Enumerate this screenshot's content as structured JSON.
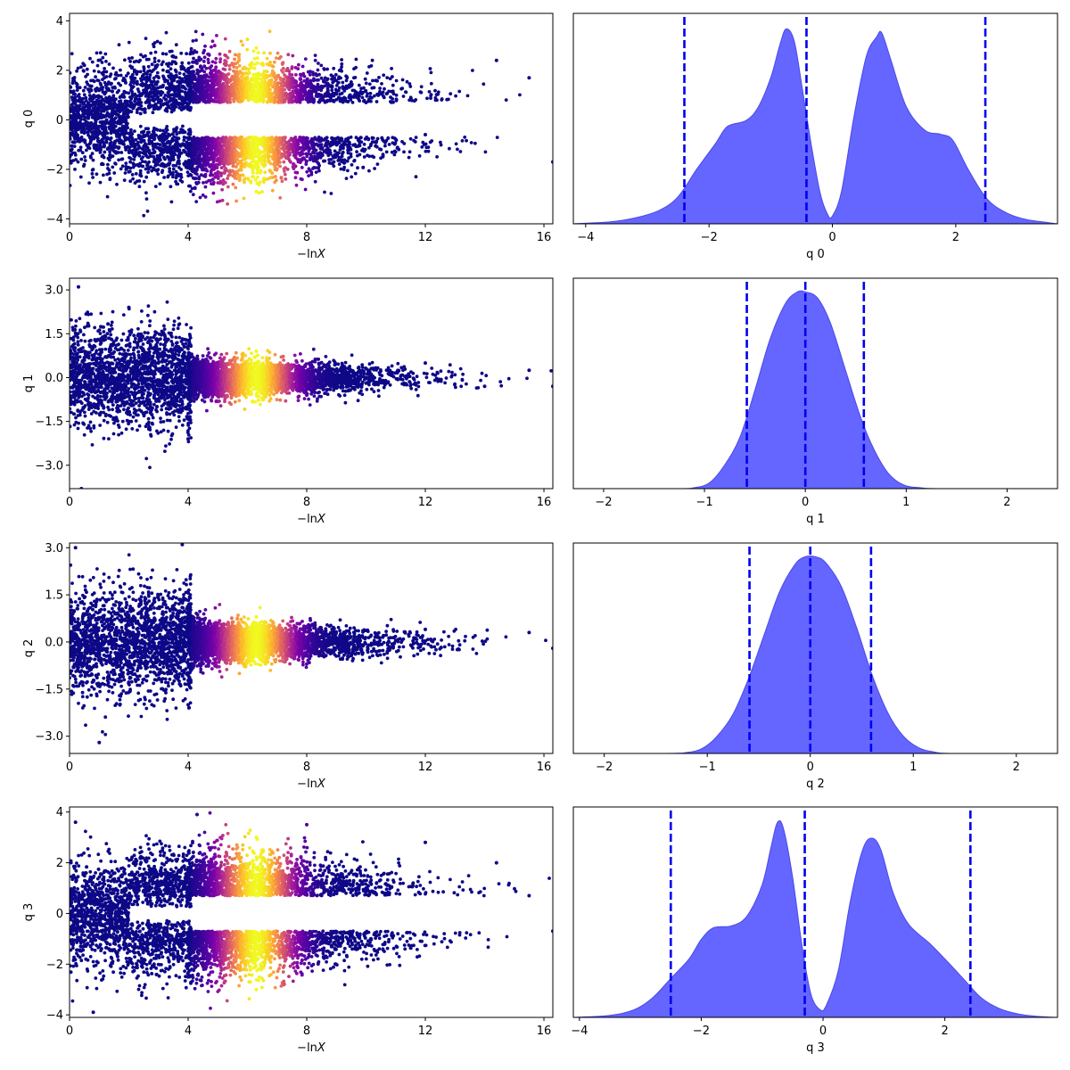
{
  "chart_data": [
    {
      "type": "scatter",
      "panel": "q0-scatter",
      "xlabel_prefix": "−ln",
      "xlabel_var": "X",
      "ylabel": "q 0",
      "xlim": [
        0,
        16.3
      ],
      "ylim": [
        -4.2,
        4.3
      ],
      "xticks": [
        0,
        4,
        8,
        12,
        16
      ],
      "yticks": [
        -4,
        -2,
        0,
        2,
        4
      ],
      "ytick_labels": [
        "−4",
        "−2",
        "0",
        "2",
        "4"
      ],
      "colormap": "plasma",
      "pattern": "bimodal-gap",
      "switch_x": 4.1,
      "peak_x": 6.3,
      "gap_halfwidth": 0.2,
      "approx_points": [
        [
          0.5,
          2.2
        ],
        [
          2.0,
          -2.1
        ],
        [
          4.0,
          0.9
        ],
        [
          6.3,
          2.9
        ],
        [
          6.3,
          -2.9
        ],
        [
          8.0,
          1.5
        ],
        [
          10.0,
          0.7
        ],
        [
          12.0,
          -0.6
        ],
        [
          14.4,
          2.4
        ],
        [
          15.5,
          1.7
        ],
        [
          16.3,
          -1.7
        ]
      ]
    },
    {
      "type": "area",
      "panel": "q0-density",
      "xlabel": "q 0",
      "xlim": [
        -4.2,
        3.65
      ],
      "ylim": [
        0,
        1.08
      ],
      "xticks": [
        -4,
        -2,
        0,
        2
      ],
      "xtick_labels": [
        "−4",
        "−2",
        "0",
        "2"
      ],
      "fill_color": "#6565ff",
      "vlines": [
        -2.4,
        -0.42,
        2.48
      ],
      "vline_color": "#0000ee",
      "density": {
        "x": [
          -4.2,
          -3.6,
          -3.2,
          -2.8,
          -2.5,
          -2.2,
          -1.9,
          -1.7,
          -1.4,
          -1.2,
          -1.0,
          -0.85,
          -0.75,
          -0.62,
          -0.5,
          -0.35,
          -0.2,
          -0.08,
          0.0,
          0.15,
          0.35,
          0.55,
          0.72,
          0.8,
          0.95,
          1.2,
          1.5,
          1.75,
          1.95,
          2.2,
          2.5,
          2.8,
          3.1,
          3.4,
          3.65
        ],
        "y": [
          0.0,
          0.01,
          0.03,
          0.07,
          0.14,
          0.28,
          0.41,
          0.5,
          0.53,
          0.6,
          0.75,
          0.92,
          1.0,
          0.94,
          0.72,
          0.42,
          0.16,
          0.05,
          0.04,
          0.17,
          0.55,
          0.86,
          0.96,
          0.98,
          0.84,
          0.6,
          0.48,
          0.46,
          0.43,
          0.28,
          0.13,
          0.06,
          0.025,
          0.01,
          0.0
        ]
      }
    },
    {
      "type": "scatter",
      "panel": "q1-scatter",
      "xlabel_prefix": "−ln",
      "xlabel_var": "X",
      "ylabel": "q 1",
      "xlim": [
        0,
        16.3
      ],
      "ylim": [
        -3.8,
        3.4
      ],
      "xticks": [
        0,
        4,
        8,
        12,
        16
      ],
      "yticks": [
        -3.0,
        -1.5,
        0.0,
        1.5,
        3.0
      ],
      "ytick_labels": [
        "−3.0",
        "−1.5",
        "0.0",
        "1.5",
        "3.0"
      ],
      "colormap": "plasma",
      "pattern": "funnel",
      "switch_x": 4.1,
      "peak_x": 6.3,
      "approx_points": [
        [
          0.3,
          3.1
        ],
        [
          0.4,
          -3.8
        ],
        [
          2.0,
          2.4
        ],
        [
          4.0,
          -2.1
        ],
        [
          6.3,
          0.9
        ],
        [
          8.0,
          -0.6
        ],
        [
          12.0,
          0.5
        ],
        [
          14.0,
          -0.3
        ],
        [
          15.5,
          0.25
        ],
        [
          16.3,
          -0.3
        ]
      ]
    },
    {
      "type": "area",
      "panel": "q1-density",
      "xlabel": "q 1",
      "xlim": [
        -2.3,
        2.5
      ],
      "ylim": [
        0,
        1.07
      ],
      "xticks": [
        -2,
        -1,
        0,
        1,
        2
      ],
      "xtick_labels": [
        "−2",
        "−1",
        "0",
        "1",
        "2"
      ],
      "fill_color": "#6565ff",
      "vlines": [
        -0.58,
        0.0,
        0.58
      ],
      "vline_color": "#0000ee",
      "density": {
        "x": [
          -2.3,
          -1.3,
          -1.1,
          -0.95,
          -0.8,
          -0.65,
          -0.5,
          -0.35,
          -0.2,
          -0.08,
          0.0,
          0.12,
          0.25,
          0.4,
          0.55,
          0.68,
          0.82,
          0.97,
          1.15,
          1.4,
          2.5
        ],
        "y": [
          0.0,
          0.0,
          0.005,
          0.03,
          0.12,
          0.26,
          0.5,
          0.76,
          0.94,
          1.0,
          1.0,
          0.97,
          0.84,
          0.6,
          0.36,
          0.2,
          0.08,
          0.02,
          0.004,
          0.0,
          0.0
        ]
      }
    },
    {
      "type": "scatter",
      "panel": "q2-scatter",
      "xlabel_prefix": "−ln",
      "xlabel_var": "X",
      "ylabel": "q 2",
      "xlim": [
        0,
        16.3
      ],
      "ylim": [
        -3.55,
        3.15
      ],
      "xticks": [
        0,
        4,
        8,
        12,
        16
      ],
      "yticks": [
        -3.0,
        -1.5,
        0.0,
        1.5,
        3.0
      ],
      "ytick_labels": [
        "−3.0",
        "−1.5",
        "0.0",
        "1.5",
        "3.0"
      ],
      "colormap": "plasma",
      "pattern": "funnel",
      "switch_x": 4.1,
      "peak_x": 6.3,
      "approx_points": [
        [
          0.2,
          3.0
        ],
        [
          1.0,
          -3.2
        ],
        [
          3.8,
          3.1
        ],
        [
          4.0,
          -2.0
        ],
        [
          6.3,
          0.8
        ],
        [
          8.0,
          -0.7
        ],
        [
          12.0,
          0.4
        ],
        [
          15.5,
          0.3
        ],
        [
          16.3,
          -0.2
        ]
      ]
    },
    {
      "type": "area",
      "panel": "q2-density",
      "xlabel": "q 2",
      "xlim": [
        -2.3,
        2.4
      ],
      "ylim": [
        0,
        1.07
      ],
      "xticks": [
        -2,
        -1,
        0,
        1,
        2
      ],
      "xtick_labels": [
        "−2",
        "−1",
        "0",
        "1",
        "2"
      ],
      "fill_color": "#6565ff",
      "vlines": [
        -0.59,
        0.0,
        0.59
      ],
      "vline_color": "#0000ee",
      "density": {
        "x": [
          -2.3,
          -1.4,
          -1.2,
          -1.05,
          -0.9,
          -0.75,
          -0.6,
          -0.45,
          -0.3,
          -0.15,
          -0.05,
          0.05,
          0.15,
          0.3,
          0.45,
          0.6,
          0.75,
          0.9,
          1.05,
          1.2,
          1.4,
          2.4
        ],
        "y": [
          0.0,
          0.0,
          0.005,
          0.025,
          0.09,
          0.2,
          0.38,
          0.6,
          0.82,
          0.96,
          1.0,
          1.0,
          0.97,
          0.85,
          0.64,
          0.4,
          0.21,
          0.09,
          0.03,
          0.008,
          0.0,
          0.0
        ]
      }
    },
    {
      "type": "scatter",
      "panel": "q3-scatter",
      "xlabel_prefix": "−ln",
      "xlabel_var": "X",
      "ylabel": "q 3",
      "xlim": [
        0,
        16.3
      ],
      "ylim": [
        -4.1,
        4.2
      ],
      "xticks": [
        0,
        4,
        8,
        12,
        16
      ],
      "yticks": [
        -4,
        -2,
        0,
        2,
        4
      ],
      "ytick_labels": [
        "−4",
        "−2",
        "0",
        "2",
        "4"
      ],
      "colormap": "plasma",
      "pattern": "bimodal-gap",
      "switch_x": 4.1,
      "peak_x": 6.3,
      "gap_halfwidth": 0.2,
      "approx_points": [
        [
          0.2,
          3.6
        ],
        [
          0.8,
          -3.9
        ],
        [
          4.3,
          3.9
        ],
        [
          6.3,
          3.0
        ],
        [
          6.3,
          -3.0
        ],
        [
          8.0,
          3.5
        ],
        [
          10.0,
          1.0
        ],
        [
          12.0,
          2.8
        ],
        [
          14.4,
          2.0
        ],
        [
          15.5,
          0.7
        ],
        [
          16.3,
          -0.7
        ]
      ]
    },
    {
      "type": "area",
      "panel": "q3-density",
      "xlabel": "q 3",
      "xlim": [
        -4.1,
        3.85
      ],
      "ylim": [
        0,
        1.08
      ],
      "xticks": [
        -4,
        -2,
        0,
        2
      ],
      "xtick_labels": [
        "−4",
        "−2",
        "0",
        "2"
      ],
      "fill_color": "#6565ff",
      "vlines": [
        -2.5,
        -0.3,
        2.42
      ],
      "vline_color": "#0000ee",
      "density": {
        "x": [
          -4.1,
          -3.5,
          -3.1,
          -2.8,
          -2.5,
          -2.2,
          -2.0,
          -1.8,
          -1.5,
          -1.25,
          -1.0,
          -0.85,
          -0.75,
          -0.65,
          -0.5,
          -0.35,
          -0.2,
          -0.05,
          0.05,
          0.25,
          0.45,
          0.65,
          0.8,
          0.95,
          1.15,
          1.4,
          1.75,
          2.0,
          2.3,
          2.6,
          2.9,
          3.2,
          3.5,
          3.85
        ],
        "y": [
          0.0,
          0.01,
          0.04,
          0.1,
          0.2,
          0.3,
          0.4,
          0.46,
          0.47,
          0.52,
          0.68,
          0.88,
          1.0,
          0.97,
          0.72,
          0.38,
          0.12,
          0.04,
          0.06,
          0.24,
          0.6,
          0.86,
          0.92,
          0.86,
          0.64,
          0.48,
          0.38,
          0.3,
          0.2,
          0.1,
          0.045,
          0.018,
          0.006,
          0.0
        ]
      }
    }
  ]
}
